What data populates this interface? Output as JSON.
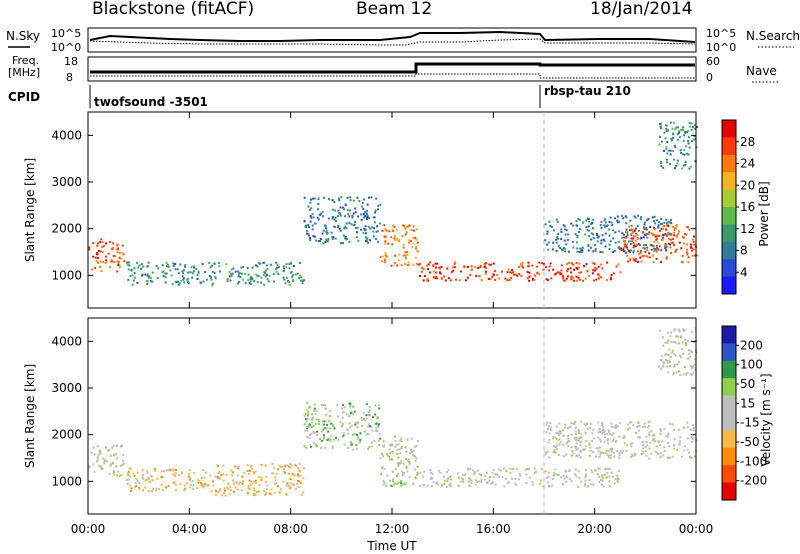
{
  "header": {
    "title_left": "Blackstone (fitACF)",
    "title_center": "Beam 12",
    "title_right": "18/Jan/2014"
  },
  "noise_panel": {
    "left_label": "N.Sky",
    "right_label": "N.Search",
    "ticks": [
      "10^5",
      "10^0"
    ],
    "right_ticks": [
      "10^5",
      "10^0"
    ]
  },
  "freq_panel": {
    "left_label_line1": "Freq.",
    "left_label_line2": "[MHz]",
    "right_label": "Nave",
    "ticks": [
      "18",
      "8"
    ],
    "right_ticks": [
      "60",
      "0"
    ]
  },
  "cpid_panel": {
    "label": "CPID",
    "segments": [
      {
        "name": "twofsound -3501",
        "start_hour": 0
      },
      {
        "name": "rbsp-tau 210",
        "start_hour": 18
      }
    ]
  },
  "colors": {
    "power_scale": [
      "#1a1aff",
      "#2a4bd8",
      "#2e7d9a",
      "#3c9a6a",
      "#5dbb4a",
      "#a6cc2f",
      "#f2b31e",
      "#ff7a0e",
      "#ff3a00",
      "#e60000"
    ],
    "velocity_scale": [
      "#e60000",
      "#ff4a00",
      "#ff8c00",
      "#f5b843",
      "#bdbdbd",
      "#bdbdbd",
      "#8cd050",
      "#2e9a46",
      "#2a56c8",
      "#1a1aa8"
    ]
  },
  "chart_data": [
    {
      "type": "heatmap",
      "name": "Power",
      "ylabel": "Slant Range [km]",
      "yticks": [
        "1000",
        "2000",
        "3000",
        "4000"
      ],
      "ylim": [
        300,
        4500
      ],
      "xlim": [
        0,
        24
      ],
      "colorbar_label": "Power [dB]",
      "colorbar_ticks": [
        "4",
        "8",
        "12",
        "16",
        "20",
        "24",
        "28"
      ],
      "colorbar_range": [
        0,
        32
      ],
      "features": [
        {
          "t0": 0,
          "t1": 1.4,
          "r0": 1100,
          "r1": 1800,
          "level": 26
        },
        {
          "t0": 1.5,
          "t1": 8.5,
          "r0": 800,
          "r1": 1300,
          "level": 10
        },
        {
          "t0": 8.5,
          "t1": 11.5,
          "r0": 1700,
          "r1": 2700,
          "level": 8
        },
        {
          "t0": 11.5,
          "t1": 13,
          "r0": 1200,
          "r1": 2100,
          "level": 24
        },
        {
          "t0": 13,
          "t1": 21,
          "r0": 900,
          "r1": 1300,
          "level": 28
        },
        {
          "t0": 18,
          "t1": 23,
          "r0": 1500,
          "r1": 2300,
          "level": 8
        },
        {
          "t0": 21,
          "t1": 24,
          "r0": 1300,
          "r1": 2100,
          "level": 26
        },
        {
          "t0": 22.5,
          "t1": 24,
          "r0": 3300,
          "r1": 4300,
          "level": 10
        }
      ]
    },
    {
      "type": "heatmap",
      "name": "Velocity",
      "ylabel": "Slant Range [km]",
      "yticks": [
        "1000",
        "2000",
        "3000",
        "4000"
      ],
      "ylim": [
        300,
        4500
      ],
      "xlim": [
        0,
        24
      ],
      "colorbar_label": "Velocity [m s⁻¹]",
      "colorbar_ticks": [
        "200",
        "100",
        "50",
        "15",
        "-15",
        "-50",
        "-100",
        "-200"
      ],
      "colorbar_range": [
        -250,
        250
      ],
      "features": [
        {
          "t0": 0,
          "t1": 1.4,
          "r0": 1100,
          "r1": 1800,
          "level": 0
        },
        {
          "t0": 1.5,
          "t1": 5,
          "r0": 800,
          "r1": 1300,
          "level": -60
        },
        {
          "t0": 5,
          "t1": 8.5,
          "r0": 700,
          "r1": 1400,
          "level": -80
        },
        {
          "t0": 8.5,
          "t1": 11.5,
          "r0": 1700,
          "r1": 2700,
          "level": 60
        },
        {
          "t0": 11.5,
          "t1": 13,
          "r0": 900,
          "r1": 2000,
          "level": 40
        },
        {
          "t0": 13,
          "t1": 21,
          "r0": 900,
          "r1": 1300,
          "level": 0
        },
        {
          "t0": 18,
          "t1": 24,
          "r0": 1500,
          "r1": 2300,
          "level": 0
        },
        {
          "t0": 22.5,
          "t1": 24,
          "r0": 3300,
          "r1": 4300,
          "level": 0
        }
      ]
    }
  ],
  "time_axis": {
    "label": "Time UT",
    "ticks": [
      "00:00",
      "04:00",
      "08:00",
      "12:00",
      "16:00",
      "20:00",
      "00:00"
    ]
  }
}
